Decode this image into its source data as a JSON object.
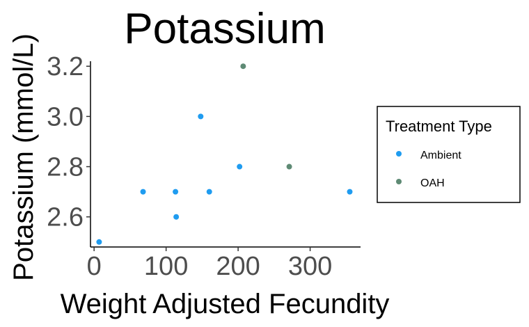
{
  "chart_data": {
    "type": "scatter",
    "title": "Potassium",
    "xlabel": "Weight Adjusted Fecundity",
    "ylabel": "Potassium (mmol/L)",
    "xlim": [
      -5,
      370
    ],
    "ylim": [
      2.48,
      3.22
    ],
    "x_ticks": [
      0,
      100,
      200,
      300
    ],
    "y_ticks": [
      2.6,
      2.8,
      3.0,
      3.2
    ],
    "y_tick_labels": [
      "2.6",
      "2.8",
      "3.0",
      "3.2"
    ],
    "grid": false,
    "legend": {
      "title": "Treatment Type",
      "position": "right"
    },
    "series": [
      {
        "name": "Ambient",
        "color": "#1f9cf0",
        "x": [
          7,
          68,
          113,
          114,
          148,
          160,
          202,
          355
        ],
        "y": [
          2.5,
          2.7,
          2.7,
          2.6,
          3.0,
          2.7,
          2.8,
          2.7
        ]
      },
      {
        "name": "OAH",
        "color": "#5e8a74",
        "x": [
          207,
          271
        ],
        "y": [
          3.2,
          2.8
        ]
      }
    ]
  }
}
